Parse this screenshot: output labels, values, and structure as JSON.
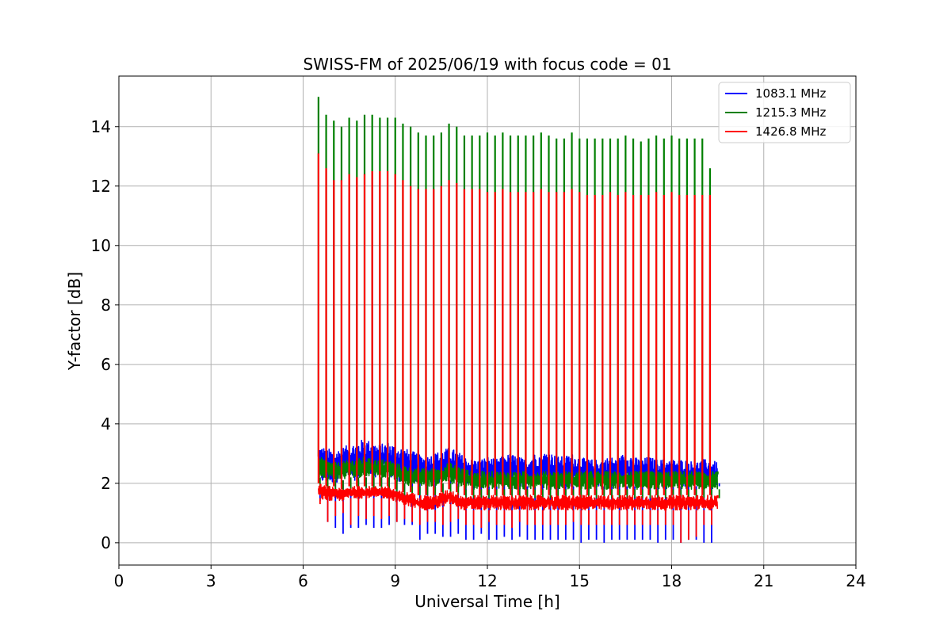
{
  "chart_data": {
    "type": "line",
    "title": "SWISS-FM of 2025/06/19 with focus code = 01",
    "xlabel": "Universal Time [h]",
    "ylabel": "Y-factor [dB]",
    "xlim": [
      0,
      24
    ],
    "ylim": [
      -0.75,
      15.7
    ],
    "xticks": [
      0,
      3,
      6,
      9,
      12,
      15,
      18,
      21,
      24
    ],
    "xtick_labels": [
      "0",
      "3",
      "6",
      "9",
      "12",
      "15",
      "18",
      "21",
      "24"
    ],
    "yticks": [
      0,
      2,
      4,
      6,
      8,
      10,
      12,
      14
    ],
    "ytick_labels": [
      "0",
      "2",
      "4",
      "6",
      "8",
      "10",
      "12",
      "14"
    ],
    "grid": true,
    "legend_position": "top-right",
    "series": [
      {
        "name": "1083.1 MHz",
        "color": "#0000ff",
        "x": [
          6.5,
          6.75,
          7.0,
          7.25,
          7.5,
          7.75,
          8.0,
          8.25,
          8.5,
          8.75,
          9.0,
          9.25,
          9.5,
          9.75,
          10.0,
          10.25,
          10.5,
          10.75,
          11.0,
          11.25,
          11.5,
          11.75,
          12.0,
          12.25,
          12.5,
          12.75,
          13.0,
          13.25,
          13.5,
          13.75,
          14.0,
          14.25,
          14.5,
          14.75,
          15.0,
          15.25,
          15.5,
          15.75,
          16.0,
          16.25,
          16.5,
          16.75,
          17.0,
          17.25,
          17.5,
          17.75,
          18.0,
          18.25,
          18.5,
          18.75,
          19.0,
          19.25,
          19.5
        ],
        "band_low": [
          2.0,
          2.0,
          2.0,
          2.1,
          2.1,
          2.1,
          2.2,
          2.2,
          2.2,
          2.2,
          2.1,
          2.0,
          2.0,
          2.0,
          2.0,
          2.0,
          2.0,
          2.1,
          2.0,
          2.0,
          1.9,
          1.9,
          1.9,
          1.9,
          2.0,
          2.0,
          1.9,
          1.9,
          1.9,
          2.0,
          2.0,
          1.9,
          1.9,
          1.9,
          1.9,
          1.9,
          1.9,
          1.9,
          1.9,
          1.9,
          1.9,
          1.9,
          1.9,
          1.9,
          1.9,
          1.9,
          1.9,
          1.9,
          1.9,
          1.9,
          1.9,
          1.9,
          1.9
        ],
        "band_high": [
          3.3,
          3.2,
          3.1,
          3.2,
          3.3,
          3.4,
          3.5,
          3.4,
          3.3,
          3.4,
          3.3,
          3.2,
          3.1,
          3.0,
          2.9,
          3.0,
          3.1,
          3.2,
          3.1,
          2.9,
          2.8,
          2.8,
          2.9,
          2.8,
          2.9,
          3.0,
          2.9,
          2.8,
          3.0,
          3.0,
          3.1,
          2.9,
          2.9,
          3.0,
          2.9,
          2.8,
          2.8,
          2.8,
          2.9,
          2.8,
          3.1,
          2.9,
          2.8,
          2.9,
          2.8,
          2.8,
          2.8,
          2.8,
          2.8,
          2.7,
          2.8,
          2.8,
          2.7
        ],
        "spike_min": [
          1.4,
          0.7,
          0.5,
          0.3,
          0.5,
          0.5,
          0.6,
          0.5,
          0.5,
          0.6,
          0.7,
          0.6,
          0.6,
          0.1,
          0.3,
          0.3,
          0.2,
          0.2,
          0.3,
          0.1,
          0.1,
          0.3,
          0.1,
          0.1,
          0.2,
          0.1,
          0.2,
          0.1,
          0.1,
          0.1,
          0.1,
          0.1,
          0.1,
          0.1,
          0.0,
          0.1,
          0.1,
          0.0,
          0.1,
          0.1,
          0.1,
          0.1,
          0.1,
          0.1,
          0.0,
          0.1,
          0.1,
          0.0,
          0.1,
          0.1,
          0.0,
          0.0,
          2.0
        ]
      },
      {
        "name": "1215.3 MHz",
        "color": "#008000",
        "x": [
          6.5,
          6.75,
          7.0,
          7.25,
          7.5,
          7.75,
          8.0,
          8.25,
          8.5,
          8.75,
          9.0,
          9.25,
          9.5,
          9.75,
          10.0,
          10.25,
          10.5,
          10.75,
          11.0,
          11.25,
          11.5,
          11.75,
          12.0,
          12.25,
          12.5,
          12.75,
          13.0,
          13.25,
          13.5,
          13.75,
          14.0,
          14.25,
          14.5,
          14.75,
          15.0,
          15.25,
          15.5,
          15.75,
          16.0,
          16.25,
          16.5,
          16.75,
          17.0,
          17.25,
          17.5,
          17.75,
          18.0,
          18.25,
          18.5,
          18.75,
          19.0,
          19.25,
          19.5
        ],
        "band_low": [
          2.2,
          2.2,
          2.1,
          2.1,
          2.2,
          2.2,
          2.2,
          2.3,
          2.2,
          2.2,
          2.1,
          2.0,
          1.9,
          1.9,
          1.9,
          1.9,
          2.0,
          2.0,
          1.9,
          1.8,
          1.8,
          1.8,
          1.8,
          1.8,
          1.8,
          1.8,
          1.8,
          1.8,
          1.8,
          1.8,
          1.8,
          1.8,
          1.8,
          1.8,
          1.8,
          1.8,
          1.8,
          1.8,
          1.8,
          1.8,
          1.8,
          1.8,
          1.8,
          1.8,
          1.8,
          1.8,
          1.8,
          1.8,
          1.8,
          1.8,
          1.8,
          1.8,
          1.8
        ],
        "band_high": [
          2.9,
          2.8,
          2.7,
          2.7,
          2.8,
          2.8,
          2.9,
          2.8,
          2.8,
          2.8,
          2.7,
          2.6,
          2.6,
          2.5,
          2.5,
          2.5,
          2.6,
          2.7,
          2.6,
          2.5,
          2.4,
          2.4,
          2.4,
          2.4,
          2.4,
          2.4,
          2.4,
          2.4,
          2.4,
          2.4,
          2.4,
          2.4,
          2.4,
          2.4,
          2.4,
          2.4,
          2.4,
          2.4,
          2.4,
          2.4,
          2.4,
          2.4,
          2.4,
          2.4,
          2.4,
          2.4,
          2.4,
          2.4,
          2.4,
          2.4,
          2.4,
          2.4,
          2.4
        ],
        "spike_max": [
          15.0,
          14.4,
          14.2,
          14.0,
          14.3,
          14.2,
          14.4,
          14.4,
          14.3,
          14.3,
          14.3,
          14.1,
          14.0,
          13.8,
          13.7,
          13.7,
          13.8,
          14.1,
          14.0,
          13.7,
          13.7,
          13.7,
          13.8,
          13.7,
          13.8,
          13.7,
          13.7,
          13.7,
          13.7,
          13.8,
          13.7,
          13.6,
          13.6,
          13.8,
          13.6,
          13.6,
          13.6,
          13.6,
          13.6,
          13.6,
          13.7,
          13.6,
          13.5,
          13.6,
          13.7,
          13.6,
          13.7,
          13.6,
          13.6,
          13.6,
          13.6,
          12.6,
          2.3
        ],
        "spike_min": [
          1.8,
          1.8,
          1.7,
          1.7,
          1.8,
          1.8,
          1.8,
          1.8,
          1.8,
          1.8,
          1.7,
          1.6,
          1.6,
          1.6,
          1.6,
          1.6,
          1.6,
          1.7,
          1.6,
          1.5,
          1.5,
          1.5,
          1.5,
          1.5,
          1.5,
          1.5,
          1.5,
          1.5,
          1.5,
          1.5,
          1.5,
          1.5,
          1.5,
          1.5,
          1.5,
          1.5,
          1.5,
          1.5,
          1.5,
          1.5,
          1.5,
          1.5,
          1.5,
          1.5,
          1.5,
          1.5,
          1.5,
          1.5,
          1.5,
          1.5,
          1.5,
          1.5,
          1.5
        ]
      },
      {
        "name": "1426.8 MHz",
        "color": "#ff0000",
        "x": [
          6.5,
          6.75,
          7.0,
          7.25,
          7.5,
          7.75,
          8.0,
          8.25,
          8.5,
          8.75,
          9.0,
          9.25,
          9.5,
          9.75,
          10.0,
          10.25,
          10.5,
          10.75,
          11.0,
          11.25,
          11.5,
          11.75,
          12.0,
          12.25,
          12.5,
          12.75,
          13.0,
          13.25,
          13.5,
          13.75,
          14.0,
          14.25,
          14.5,
          14.75,
          15.0,
          15.25,
          15.5,
          15.75,
          16.0,
          16.25,
          16.5,
          16.75,
          17.0,
          17.25,
          17.5,
          17.75,
          18.0,
          18.25,
          18.5,
          18.75,
          19.0,
          19.25,
          19.5
        ],
        "band_low": [
          1.5,
          1.4,
          1.4,
          1.4,
          1.5,
          1.5,
          1.5,
          1.5,
          1.5,
          1.5,
          1.4,
          1.3,
          1.2,
          1.1,
          1.1,
          1.1,
          1.2,
          1.3,
          1.2,
          1.1,
          1.1,
          1.1,
          1.1,
          1.1,
          1.1,
          1.1,
          1.1,
          1.1,
          1.1,
          1.1,
          1.1,
          1.1,
          1.1,
          1.1,
          1.1,
          1.1,
          1.1,
          1.1,
          1.1,
          1.1,
          1.1,
          1.1,
          1.1,
          1.1,
          1.1,
          1.1,
          1.1,
          1.1,
          1.1,
          1.1,
          1.1,
          1.1,
          1.1
        ],
        "band_high": [
          2.0,
          1.9,
          1.9,
          1.8,
          1.9,
          1.9,
          1.9,
          1.9,
          1.9,
          1.9,
          1.8,
          1.7,
          1.7,
          1.6,
          1.6,
          1.6,
          1.7,
          1.8,
          1.7,
          1.6,
          1.6,
          1.6,
          1.6,
          1.6,
          1.6,
          1.6,
          1.6,
          1.6,
          1.6,
          1.6,
          1.6,
          1.6,
          1.6,
          1.6,
          1.6,
          1.6,
          1.6,
          1.6,
          1.6,
          1.6,
          1.6,
          1.6,
          1.6,
          1.6,
          1.6,
          1.6,
          1.6,
          1.6,
          1.6,
          1.6,
          1.6,
          1.6,
          1.6
        ],
        "spike_max": [
          13.1,
          12.6,
          12.2,
          12.2,
          12.4,
          12.3,
          12.4,
          12.5,
          12.5,
          12.5,
          12.4,
          12.2,
          12.0,
          11.9,
          11.9,
          11.9,
          12.0,
          12.2,
          12.1,
          11.9,
          11.9,
          11.9,
          11.8,
          11.8,
          11.9,
          11.8,
          11.8,
          11.8,
          11.8,
          11.9,
          11.8,
          11.8,
          11.8,
          11.9,
          11.8,
          11.7,
          11.7,
          11.7,
          11.8,
          11.7,
          11.8,
          11.7,
          11.7,
          11.7,
          11.8,
          11.7,
          11.8,
          11.7,
          11.7,
          11.7,
          11.7,
          11.7,
          1.5
        ],
        "spike_min": [
          1.3,
          0.7,
          0.9,
          1.0,
          0.6,
          0.9,
          0.8,
          0.9,
          0.8,
          0.9,
          0.7,
          0.8,
          0.7,
          0.6,
          0.7,
          0.7,
          0.6,
          0.7,
          0.8,
          0.6,
          0.6,
          0.5,
          0.7,
          0.6,
          0.6,
          0.5,
          0.7,
          0.6,
          0.6,
          0.6,
          0.6,
          0.6,
          0.6,
          0.7,
          0.6,
          0.6,
          0.6,
          0.6,
          0.6,
          0.6,
          0.6,
          0.6,
          0.6,
          0.6,
          0.6,
          0.6,
          0.6,
          0.0,
          0.1,
          0.2,
          0.6,
          0.6,
          1.1
        ]
      }
    ]
  }
}
